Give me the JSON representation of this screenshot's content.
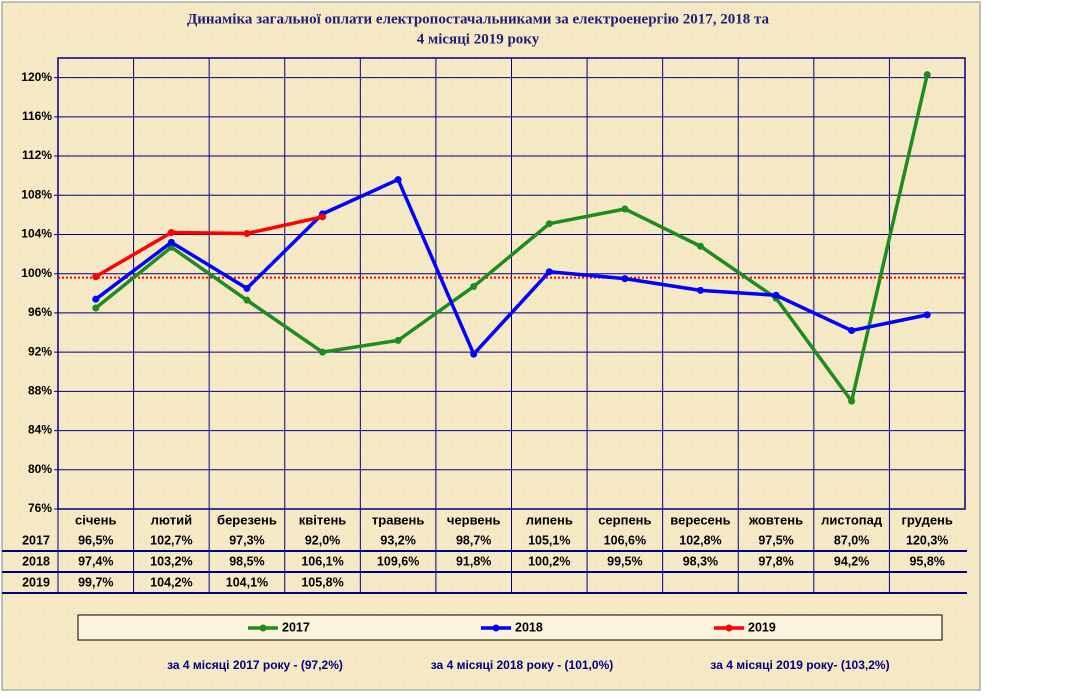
{
  "chart_data": {
    "type": "line",
    "title": [
      "Динаміка загальної оплати електропостачальниками  за електроенергію 2017, 2018 та",
      "4 місяці 2019 року"
    ],
    "categories": [
      "січень",
      "лютий",
      "березень",
      "квітень",
      "травень",
      "червень",
      "липень",
      "серпень",
      "вересень",
      "жовтень",
      "листопад",
      "грудень"
    ],
    "series": [
      {
        "name": "2017",
        "color": "#1e8c1e",
        "values": [
          96.5,
          102.7,
          97.3,
          92.0,
          93.2,
          98.7,
          105.1,
          106.6,
          102.8,
          97.5,
          87.0,
          120.3
        ],
        "value_labels": [
          "96,5%",
          "102,7%",
          "97,3%",
          "92,0%",
          "93,2%",
          "98,7%",
          "105,1%",
          "106,6%",
          "102,8%",
          "97,5%",
          "87,0%",
          "120,3%"
        ]
      },
      {
        "name": "2018",
        "color": "#0000ff",
        "values": [
          97.4,
          103.2,
          98.5,
          106.1,
          109.6,
          91.8,
          100.2,
          99.5,
          98.3,
          97.8,
          94.2,
          95.8
        ],
        "value_labels": [
          "97,4%",
          "103,2%",
          "98,5%",
          "106,1%",
          "109,6%",
          "91,8%",
          "100,2%",
          "99,5%",
          "98,3%",
          "97,8%",
          "94,2%",
          "95,8%"
        ]
      },
      {
        "name": "2019",
        "color": "#ff0000",
        "values": [
          99.7,
          104.2,
          104.1,
          105.8,
          null,
          null,
          null,
          null,
          null,
          null,
          null,
          null
        ],
        "value_labels": [
          "99,7%",
          "104,2%",
          "104,1%",
          "105,8%",
          null,
          null,
          null,
          null,
          null,
          null,
          null,
          null
        ]
      }
    ],
    "reference_line": {
      "value": 99.6,
      "color": "#ff0000"
    },
    "ylim": [
      76,
      122
    ],
    "yticks": [
      {
        "value": 76,
        "label": "76%"
      },
      {
        "value": 80,
        "label": "80%"
      },
      {
        "value": 84,
        "label": "84%"
      },
      {
        "value": 88,
        "label": "88%"
      },
      {
        "value": 92,
        "label": "92%"
      },
      {
        "value": 96,
        "label": "96%"
      },
      {
        "value": 100,
        "label": "100%"
      },
      {
        "value": 104,
        "label": "104%"
      },
      {
        "value": 108,
        "label": "108%"
      },
      {
        "value": 112,
        "label": "112%"
      },
      {
        "value": 116,
        "label": "116%"
      },
      {
        "value": 120,
        "label": "120%"
      }
    ],
    "grid": true,
    "annotations": [
      "за  4 місяці 2017 року - (97,2%)",
      "за  4 місяці 2018 року - (101,0%)",
      "за 4 місяці 2019 року- (103,2%)"
    ]
  }
}
